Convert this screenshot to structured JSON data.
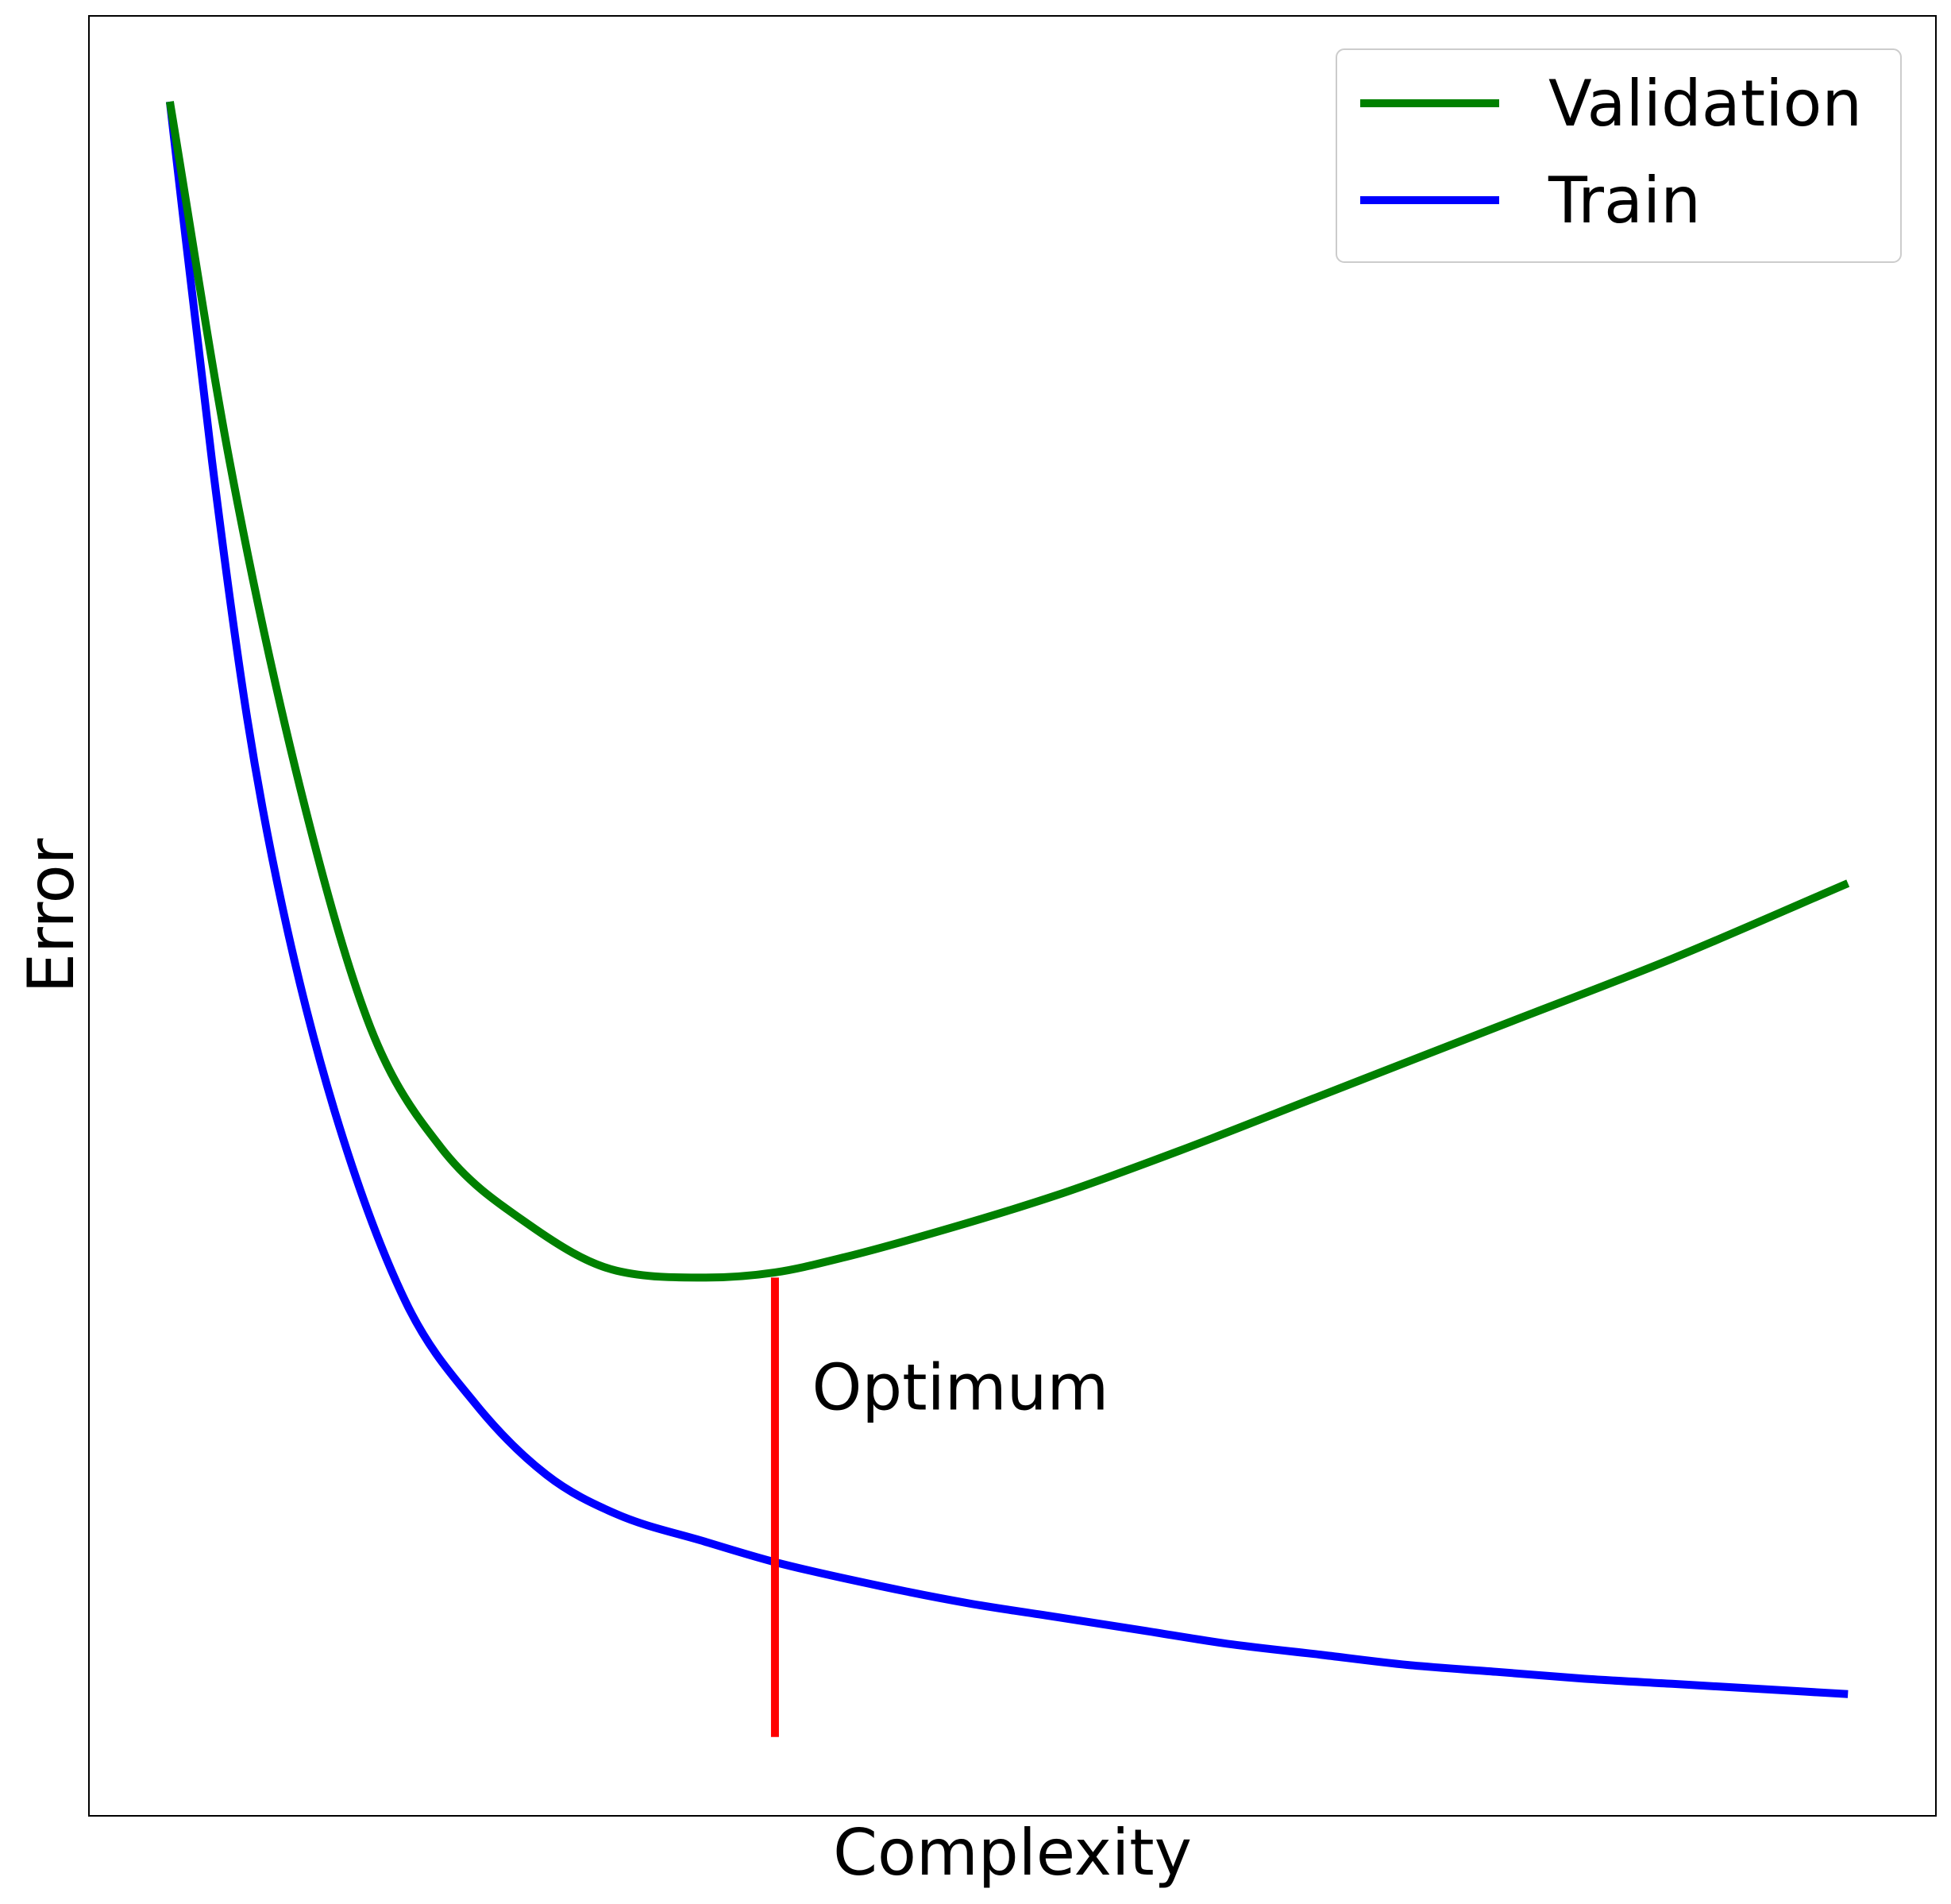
{
  "chart_data": {
    "type": "line",
    "title": "",
    "xlabel": "Complexity",
    "ylabel": "Error",
    "xlim": [
      0.0,
      1.05
    ],
    "ylim": [
      0.0,
      1.05
    ],
    "grid": false,
    "ticks_visible": false,
    "legend": {
      "location": "top-right"
    },
    "series": [
      {
        "name": "Validation",
        "color": "#008000",
        "x": [
          0.046,
          0.08,
          0.12,
          0.16,
          0.2,
          0.25,
          0.3,
          0.35,
          0.39,
          0.43,
          0.48,
          0.55,
          0.62,
          0.7,
          0.8,
          0.9,
          1.0
        ],
        "y": [
          1.0,
          0.79,
          0.6,
          0.46,
          0.39,
          0.345,
          0.318,
          0.314,
          0.317,
          0.326,
          0.34,
          0.362,
          0.388,
          0.42,
          0.46,
          0.5,
          0.544
        ]
      },
      {
        "name": "Train",
        "color": "#0000ff",
        "x": [
          0.046,
          0.07,
          0.09,
          0.11,
          0.14,
          0.18,
          0.22,
          0.26,
          0.3,
          0.35,
          0.39,
          0.45,
          0.5,
          0.55,
          0.6,
          0.65,
          0.7,
          0.75,
          0.8,
          0.85,
          0.9,
          0.95,
          1.0
        ],
        "y": [
          1.0,
          0.79,
          0.64,
          0.53,
          0.41,
          0.3,
          0.24,
          0.199,
          0.176,
          0.16,
          0.148,
          0.134,
          0.124,
          0.116,
          0.108,
          0.1,
          0.094,
          0.088,
          0.084,
          0.08,
          0.077,
          0.074,
          0.071
        ]
      }
    ],
    "vline": {
      "x": 0.39,
      "y_from": 0.046,
      "y_to": 0.314,
      "color": "#ff0000",
      "label": "Optimum",
      "label_x": 0.411,
      "label_y": 0.25
    }
  }
}
